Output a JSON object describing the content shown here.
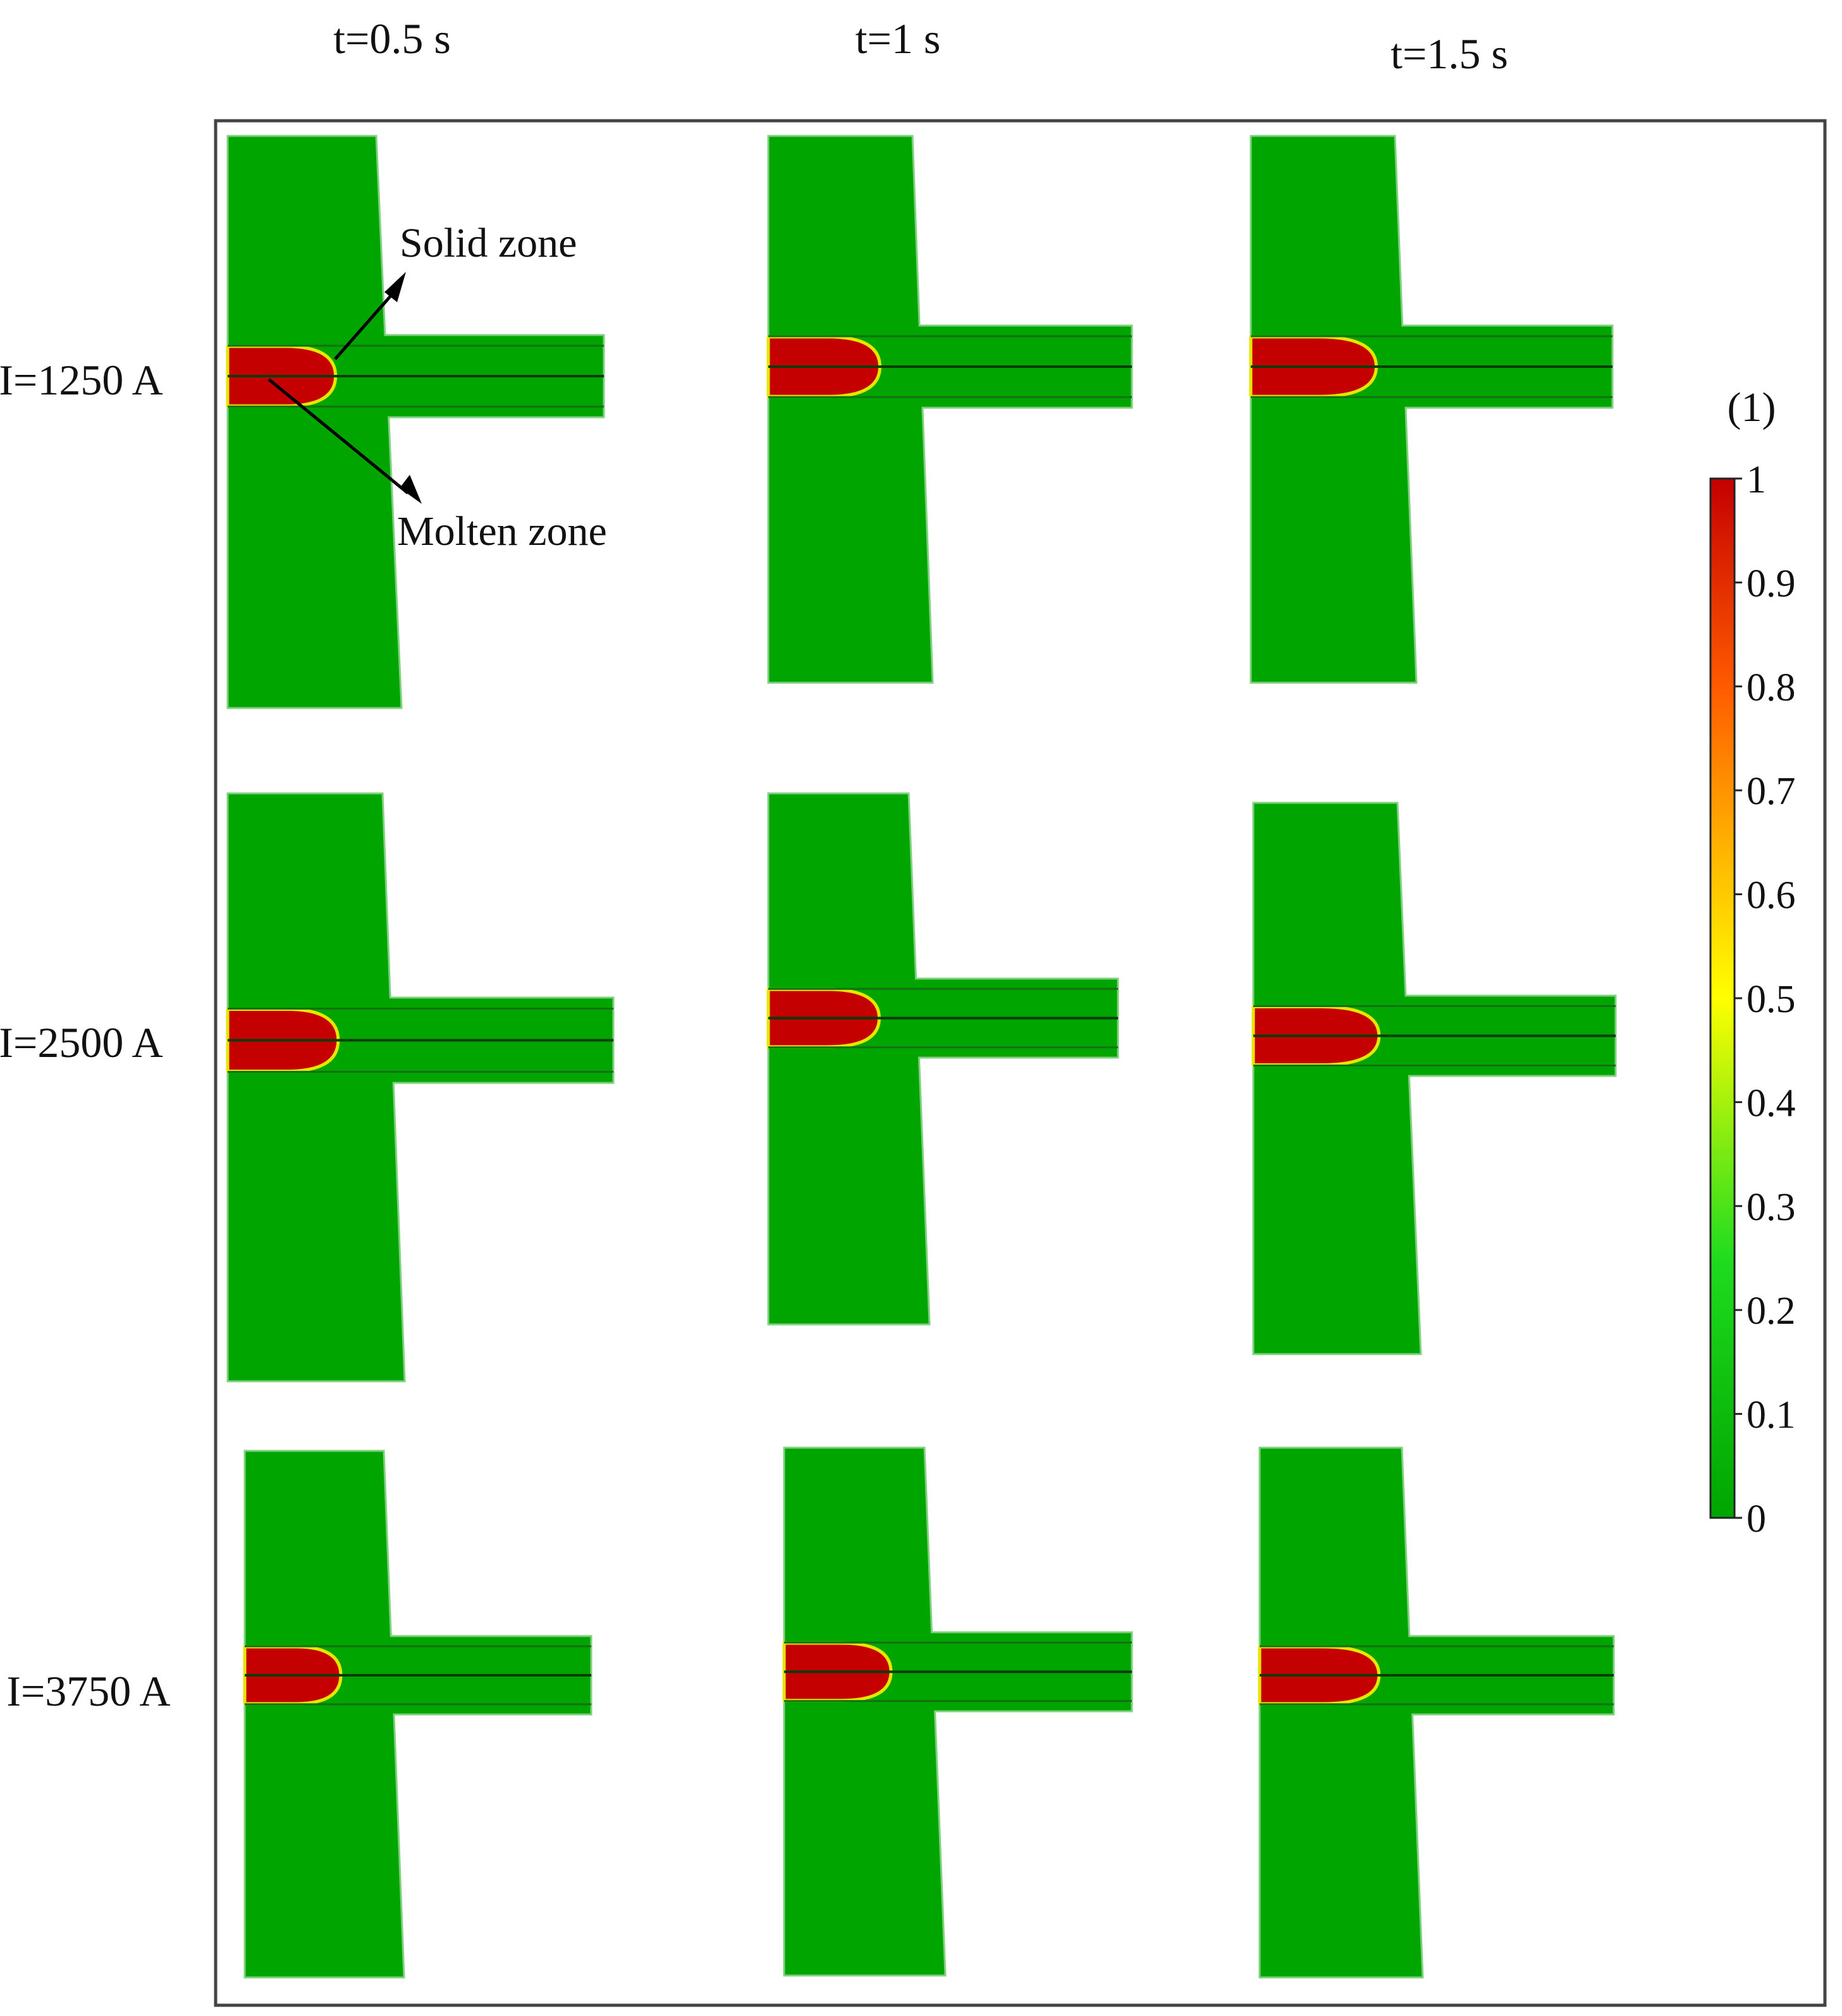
{
  "colors": {
    "solid": "#00a500",
    "molten": "#c40000",
    "interface": "#e6e600",
    "edge": "#137013",
    "frame": "#444444"
  },
  "columns": [
    "t=0.5 s",
    "t=1 s",
    "t=1.5 s"
  ],
  "rows": [
    "I=1250 A",
    "I=2500 A",
    "I=3750 A"
  ],
  "annotations": {
    "solid": "Solid zone",
    "molten": "Molten zone"
  },
  "colorbar": {
    "title": "(1)",
    "ticks": [
      "1",
      "0.9",
      "0.8",
      "0.7",
      "0.6",
      "0.5",
      "0.4",
      "0.3",
      "0.2",
      "0.1",
      "0"
    ],
    "colormap": [
      "#00a500",
      "#1fdc1f",
      "#ffff00",
      "#ffb000",
      "#ff5a00",
      "#c40000"
    ]
  },
  "molten_fraction_melt_length": [
    [
      0.28,
      0.3,
      0.34
    ],
    [
      0.28,
      0.31,
      0.34
    ],
    [
      0.27,
      0.3,
      0.33
    ]
  ]
}
